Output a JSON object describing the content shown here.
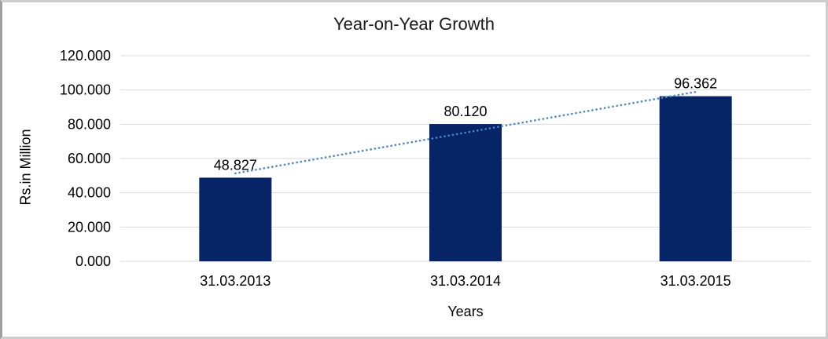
{
  "window": {
    "background": "#ffffff",
    "border_color": "#cdcdcd"
  },
  "chart_data": {
    "type": "bar",
    "title": "Year-on-Year Growth",
    "xlabel": "Years",
    "ylabel": "Rs.in Million",
    "categories": [
      "31.03.2013",
      "31.03.2014",
      "31.03.2015"
    ],
    "values": [
      48.827,
      80.12,
      96.362
    ],
    "data_labels": [
      "48.827",
      "80.120",
      "96.362"
    ],
    "ylim": [
      0,
      120
    ],
    "ytick_step": 20,
    "ytick_labels": [
      "0.000",
      "20.000",
      "40.000",
      "60.000",
      "80.000",
      "100.000",
      "120.000"
    ],
    "grid": true,
    "legend": "none",
    "trendline": {
      "type": "linear",
      "style": "dotted",
      "color": "#4a86c8"
    },
    "colors": {
      "bar": "#062466",
      "gridline": "#d9d9d9",
      "text": "#000000"
    }
  }
}
